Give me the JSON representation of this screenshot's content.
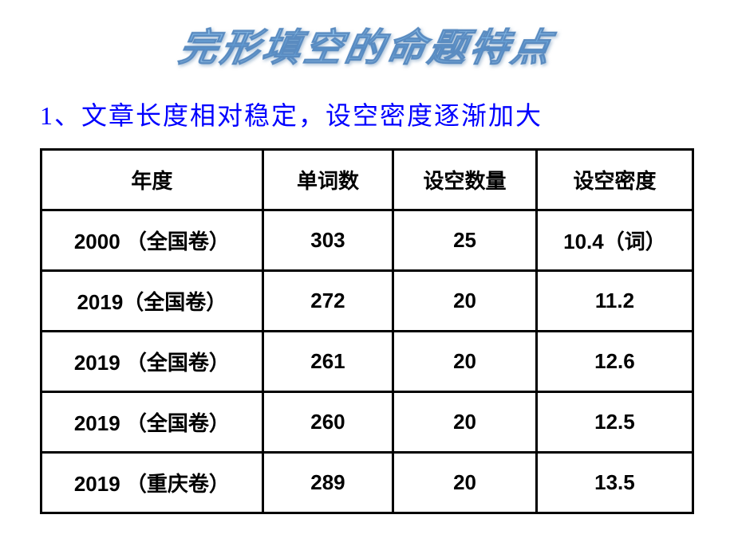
{
  "title": "完形填空的命题特点",
  "subtitle": "1、文章长度相对稳定，设空密度逐渐加大",
  "table": {
    "headers": {
      "year": "年度",
      "words": "单词数",
      "blanks": "设空数量",
      "density": "设空密度"
    },
    "rows": [
      {
        "year": "2000 （全国卷）",
        "words": "303",
        "blanks": "25",
        "density": "10.4（词）"
      },
      {
        "year": "2019（全国卷）",
        "words": "272",
        "blanks": "20",
        "density": "11.2"
      },
      {
        "year": "2019 （全国卷）",
        "words": "261",
        "blanks": "20",
        "density": "12.6"
      },
      {
        "year": "2019 （全国卷）",
        "words": "260",
        "blanks": "20",
        "density": "12.5"
      },
      {
        "year": "2019 （重庆卷）",
        "words": "289",
        "blanks": "20",
        "density": "13.5"
      }
    ]
  },
  "style": {
    "background_color": "#ffffff",
    "title_color_gradient": [
      "#b8d8f0",
      "#5090d0"
    ],
    "subtitle_color": "#0000ff",
    "border_color": "#000000",
    "text_color": "#000000",
    "title_fontsize": 48,
    "subtitle_fontsize": 32,
    "table_fontsize": 26
  }
}
